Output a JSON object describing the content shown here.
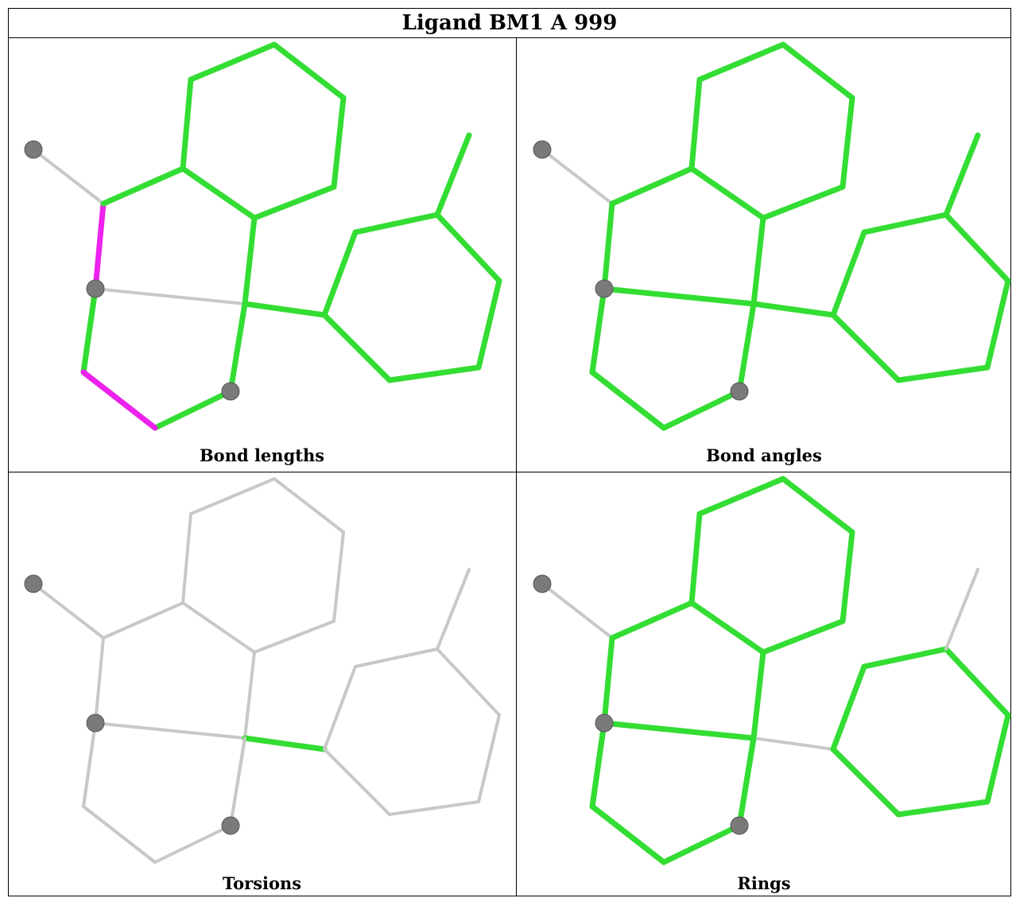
{
  "title": "Ligand BM1 A 999",
  "colors": {
    "green": "#33dd33",
    "magenta": "#ee22ee",
    "grey": "#c8c8c8",
    "atom": "#7a7a7a"
  },
  "panels": [
    {
      "caption": "Bond lengths",
      "magenta_bonds": [
        0,
        1
      ],
      "grey_bonds": [
        2,
        3,
        4
      ],
      "green_bonds": "all-others"
    },
    {
      "caption": "Bond angles",
      "grey_bonds": [
        2,
        6
      ],
      "green_bonds": "all-others"
    },
    {
      "caption": "Torsions",
      "green_bonds": [
        13
      ],
      "grey_bonds": "all-others"
    },
    {
      "caption": "Rings",
      "grey_bonds": [
        2,
        13,
        25
      ],
      "green_bonds": "all-others"
    }
  ]
}
